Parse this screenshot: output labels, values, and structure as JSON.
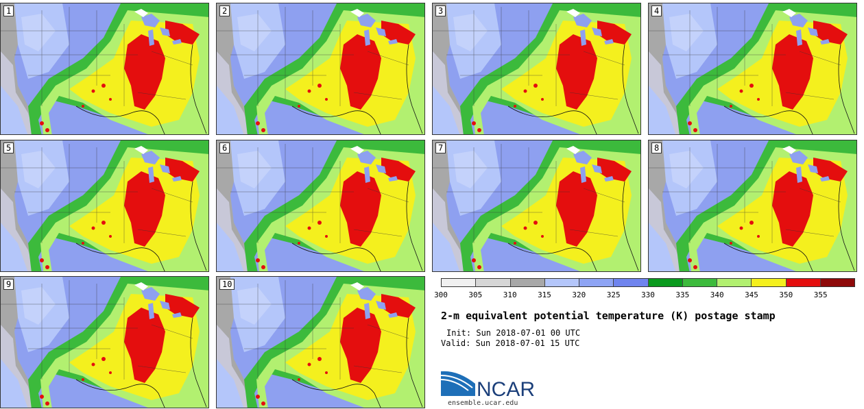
{
  "stamps": [
    {
      "label": "1"
    },
    {
      "label": "2"
    },
    {
      "label": "3"
    },
    {
      "label": "4"
    },
    {
      "label": "5"
    },
    {
      "label": "6"
    },
    {
      "label": "7"
    },
    {
      "label": "8"
    },
    {
      "label": "9"
    },
    {
      "label": "10"
    }
  ],
  "colorbar": {
    "colors": [
      "#f0f0f0",
      "#d6d6d6",
      "#a8a8a8",
      "#b4c6fa",
      "#8ea4f4",
      "#6f84ee",
      "#0a9a1e",
      "#3cba3c",
      "#b2f070",
      "#f4f01e",
      "#e40e0e",
      "#8e0a0a"
    ],
    "ticks": [
      "300",
      "305",
      "310",
      "315",
      "320",
      "325",
      "330",
      "335",
      "340",
      "345",
      "350",
      "355"
    ]
  },
  "title": "2-m equivalent potential temperature (K) postage stamp",
  "init": "Init: Sun 2018-07-01 00 UTC",
  "valid": "Valid: Sun 2018-07-01 15 UTC",
  "logo_text": "NCAR",
  "url": "ensemble.ucar.edu"
}
